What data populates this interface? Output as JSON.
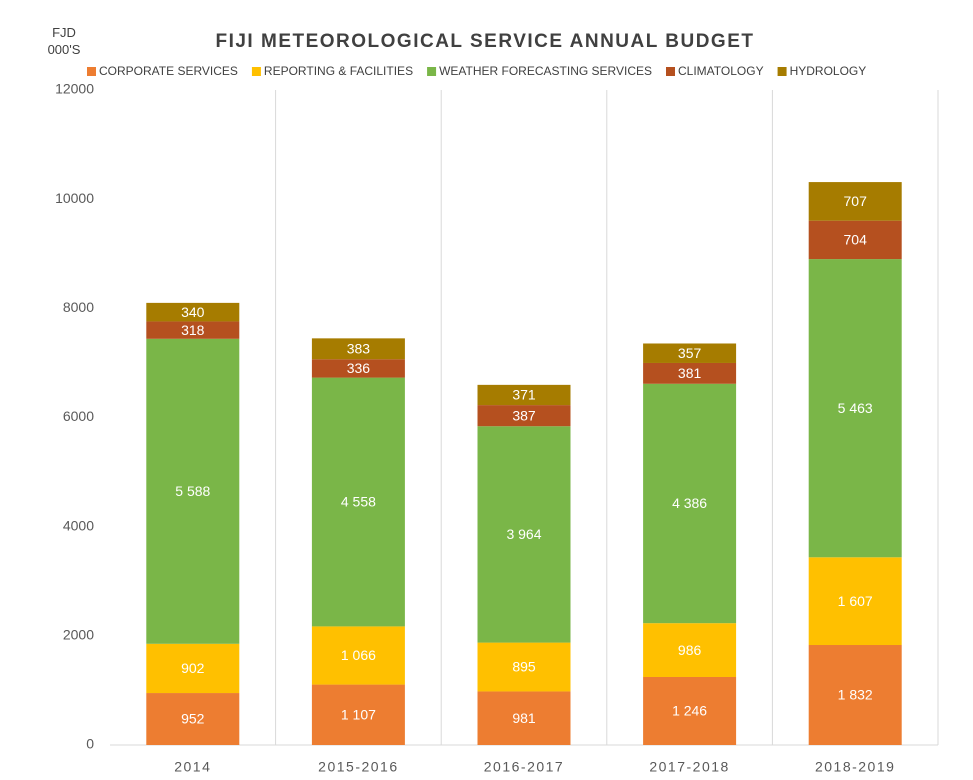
{
  "chart_data": {
    "type": "stacked_bar",
    "title": "FIJI METEOROLOGICAL SERVICE ANNUAL BUDGET",
    "ylabel": "FJD 000'S",
    "categories": [
      "2014",
      "2015-2016",
      "2016-2017",
      "2017-2018",
      "2018-2019"
    ],
    "series": [
      {
        "name": "CORPORATE SERVICES",
        "color": "#ed7d31",
        "values": [
          952,
          1107,
          981,
          1246,
          1832
        ],
        "value_labels": [
          "952",
          "1 107",
          "981",
          "1 246",
          "1 832"
        ]
      },
      {
        "name": "REPORTING & FACILITIES",
        "color": "#ffc000",
        "values": [
          902,
          1066,
          895,
          986,
          1607
        ],
        "value_labels": [
          "902",
          "1 066",
          "895",
          "986",
          "1 607"
        ]
      },
      {
        "name": "WEATHER FORECASTING SERVICES",
        "color": "#7ab648",
        "values": [
          5588,
          4558,
          3964,
          4386,
          5463
        ],
        "value_labels": [
          "5 588",
          "4 558",
          "3 964",
          "4 386",
          "5 463"
        ]
      },
      {
        "name": "CLIMATOLOGY",
        "color": "#b5501f",
        "values": [
          318,
          336,
          387,
          381,
          704
        ],
        "value_labels": [
          "318",
          "336",
          "387",
          "381",
          "704"
        ]
      },
      {
        "name": "HYDROLOGY",
        "color": "#a67c00",
        "values": [
          340,
          383,
          371,
          357,
          707
        ],
        "value_labels": [
          "340",
          "383",
          "371",
          "357",
          "707"
        ]
      }
    ],
    "ylim": [
      0,
      12000
    ],
    "yticks": [
      0,
      2000,
      4000,
      6000,
      8000,
      10000,
      12000
    ],
    "legend": "top"
  }
}
